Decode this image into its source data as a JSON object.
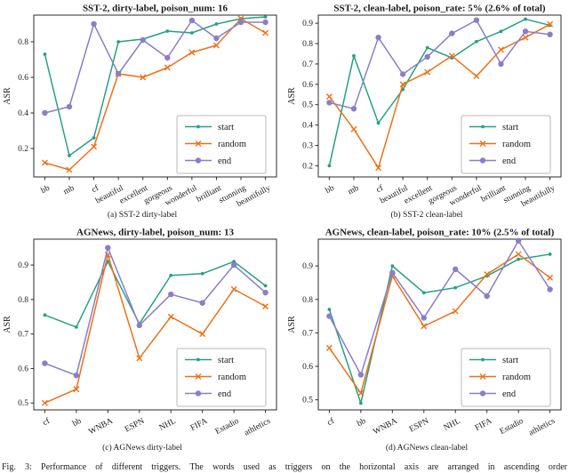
{
  "figure": {
    "caption_line": "Fig. 3: Performance of different triggers. The words used as triggers on the horizontal axis are arranged in ascending order",
    "colors": {
      "start": "#27a083",
      "random": "#ec7118",
      "end": "#8a7ec8",
      "axis": "#2b2b2b",
      "tick_text": "#1a1a1a",
      "legend_border": "#b8b8b8",
      "background": "#ffffff"
    }
  },
  "chart_data": [
    {
      "type": "line",
      "title": "SST-2, dirty-label, poison_num: 16",
      "caption": "(a) SST-2 dirty-label",
      "xlabel": "",
      "ylabel": "ASR",
      "ylim": [
        0.04,
        0.95
      ],
      "yticks": [
        0.2,
        0.4,
        0.6,
        0.8
      ],
      "grid": false,
      "legend_position": "lower right",
      "categories": [
        "bb",
        "mb",
        "cf",
        "beautiful",
        "excellent",
        "gorgeous",
        "wonderful",
        "brilliant",
        "stunning",
        "beautifully"
      ],
      "series": [
        {
          "name": "start",
          "color_key": "start",
          "marker": "dot",
          "values": [
            0.73,
            0.16,
            0.26,
            0.8,
            0.815,
            0.86,
            0.85,
            0.9,
            0.93,
            0.94
          ]
        },
        {
          "name": "random",
          "color_key": "random",
          "marker": "x",
          "values": [
            0.12,
            0.08,
            0.21,
            0.62,
            0.6,
            0.655,
            0.74,
            0.78,
            0.93,
            0.85
          ]
        },
        {
          "name": "end",
          "color_key": "end",
          "marker": "circle",
          "values": [
            0.4,
            0.435,
            0.9,
            0.62,
            0.81,
            0.71,
            0.92,
            0.82,
            0.91,
            0.91
          ]
        }
      ]
    },
    {
      "type": "line",
      "title": "SST-2, clean-label, poison_rate: 5% (2.6% of total)",
      "caption": "(b) SST-2 clean-label",
      "xlabel": "",
      "ylabel": "ASR",
      "ylim": [
        0.145,
        0.94
      ],
      "yticks": [
        0.2,
        0.3,
        0.4,
        0.5,
        0.6,
        0.7,
        0.8,
        0.9
      ],
      "grid": false,
      "legend_position": "lower right",
      "categories": [
        "bb",
        "mb",
        "cf",
        "beautiful",
        "excellent",
        "gorgeous",
        "wonderful",
        "brilliant",
        "stunning",
        "beautifully"
      ],
      "series": [
        {
          "name": "start",
          "color_key": "start",
          "marker": "dot",
          "values": [
            0.2,
            0.74,
            0.41,
            0.575,
            0.78,
            0.73,
            0.81,
            0.86,
            0.92,
            0.89
          ]
        },
        {
          "name": "random",
          "color_key": "random",
          "marker": "x",
          "values": [
            0.54,
            0.38,
            0.19,
            0.6,
            0.66,
            0.74,
            0.64,
            0.77,
            0.83,
            0.895
          ]
        },
        {
          "name": "end",
          "color_key": "end",
          "marker": "circle",
          "values": [
            0.51,
            0.48,
            0.83,
            0.65,
            0.735,
            0.85,
            0.915,
            0.7,
            0.86,
            0.845
          ]
        }
      ]
    },
    {
      "type": "line",
      "title": "AGNews, dirty-label, poison_num: 13",
      "caption": "(c) AGNews dirty-label",
      "xlabel": "",
      "ylabel": "ASR",
      "ylim": [
        0.48,
        0.975
      ],
      "yticks": [
        0.5,
        0.6,
        0.7,
        0.8,
        0.9
      ],
      "grid": false,
      "legend_position": "lower right",
      "categories": [
        "cf",
        "bb",
        "WNBA",
        "ESPN",
        "NHL",
        "FIFA",
        "Estadio",
        "athletics"
      ],
      "series": [
        {
          "name": "start",
          "color_key": "start",
          "marker": "dot",
          "values": [
            0.755,
            0.72,
            0.91,
            0.73,
            0.87,
            0.875,
            0.91,
            0.84
          ]
        },
        {
          "name": "random",
          "color_key": "random",
          "marker": "x",
          "values": [
            0.5,
            0.54,
            0.93,
            0.63,
            0.75,
            0.7,
            0.83,
            0.78
          ]
        },
        {
          "name": "end",
          "color_key": "end",
          "marker": "circle",
          "values": [
            0.615,
            0.58,
            0.95,
            0.725,
            0.815,
            0.79,
            0.9,
            0.82
          ]
        }
      ]
    },
    {
      "type": "line",
      "title": "AGNews, clean-label, poison_rate: 10% (2.5% of total)",
      "caption": "(d) AGNews clean-label",
      "xlabel": "",
      "ylabel": "ASR",
      "ylim": [
        0.47,
        0.98
      ],
      "yticks": [
        0.5,
        0.6,
        0.7,
        0.8,
        0.9
      ],
      "grid": false,
      "legend_position": "lower right",
      "categories": [
        "cf",
        "bb",
        "WNBA",
        "ESPN",
        "NHL",
        "FIFA",
        "Estadio",
        "athletics"
      ],
      "series": [
        {
          "name": "start",
          "color_key": "start",
          "marker": "dot",
          "values": [
            0.77,
            0.49,
            0.9,
            0.82,
            0.835,
            0.87,
            0.92,
            0.935
          ]
        },
        {
          "name": "random",
          "color_key": "random",
          "marker": "x",
          "values": [
            0.655,
            0.52,
            0.87,
            0.72,
            0.765,
            0.875,
            0.935,
            0.865
          ]
        },
        {
          "name": "end",
          "color_key": "end",
          "marker": "circle",
          "values": [
            0.75,
            0.575,
            0.88,
            0.745,
            0.89,
            0.81,
            0.975,
            0.83
          ]
        }
      ]
    }
  ]
}
